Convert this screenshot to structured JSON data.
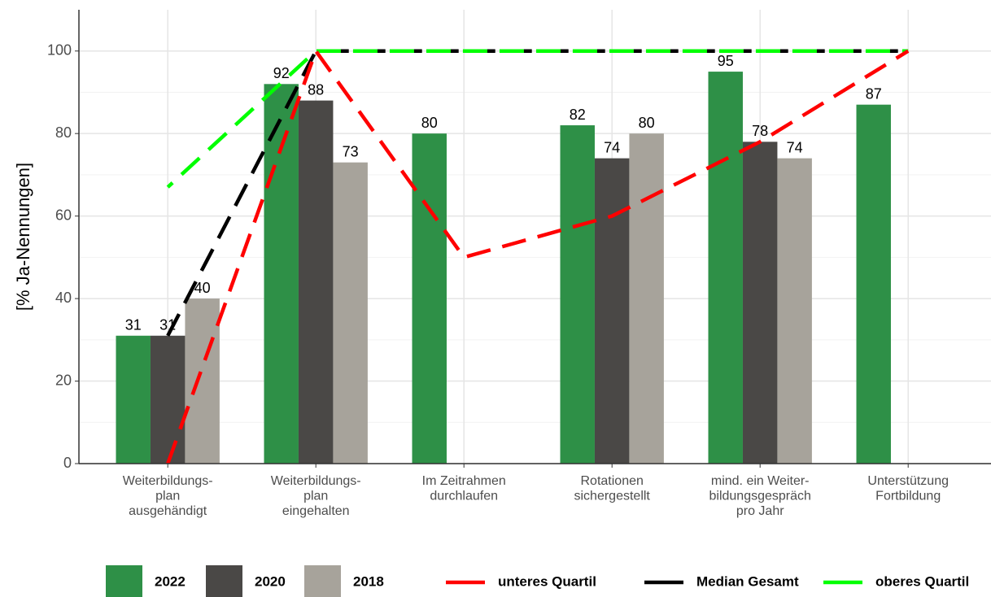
{
  "chart_data": {
    "type": "bar",
    "ylabel": "[% Ja-Nennungen]",
    "categories": [
      "Weiterbildungs-\nplan\nausgehändigt",
      "Weiterbildungs-\nplan\neingehalten",
      "Im Zeitrahmen\ndurchlaufen",
      "Rotationen\nsichergestellt",
      "mind. ein Weiter-\nbildungsgespräch\npro Jahr",
      "Unterstützung\nFortbildung"
    ],
    "series": [
      {
        "name": "2022",
        "color": "#2e9047",
        "values": [
          31,
          92,
          80,
          82,
          95,
          87
        ]
      },
      {
        "name": "2020",
        "color": "#4a4846",
        "values": [
          31,
          88,
          null,
          74,
          78,
          null
        ]
      },
      {
        "name": "2018",
        "color": "#a7a39b",
        "values": [
          40,
          73,
          null,
          80,
          74,
          null
        ]
      }
    ],
    "lines": [
      {
        "name": "unteres Quartil",
        "color": "#ff0000",
        "values": [
          0,
          100,
          50,
          60,
          78,
          100
        ]
      },
      {
        "name": "Median Gesamt",
        "color": "#000000",
        "values": [
          31,
          100,
          100,
          100,
          100,
          100
        ]
      },
      {
        "name": "oberes Quartil",
        "color": "#00ff00",
        "values": [
          67,
          100,
          100,
          100,
          100,
          100
        ]
      }
    ],
    "ylim": [
      0,
      110
    ],
    "yticks": [
      0,
      20,
      40,
      60,
      80,
      100
    ],
    "grid": true
  }
}
